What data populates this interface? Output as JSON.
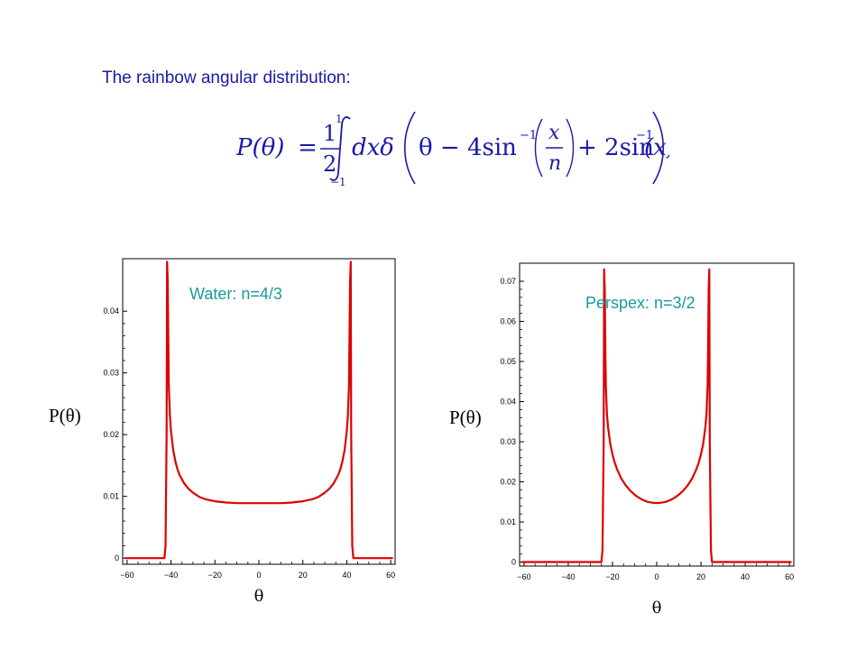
{
  "slide": {
    "title": "The rainbow angular distribution:",
    "accent_color": "#1a1aa6",
    "formula": {
      "lhs": "P(θ)",
      "frac1_num": "1",
      "frac1_den": "2",
      "int_upper": "1",
      "int_lower": "−1",
      "integrand_a": "dxδ",
      "arg_1": "θ − 4sin",
      "inv_1": "−1",
      "frac2_num": "x",
      "frac2_den": "n",
      "arg_2": "+ 2sin",
      "inv_2": "−1",
      "arg_3": "(x)"
    }
  },
  "chart_data": [
    {
      "type": "line",
      "annotation": "Water:  n=4/3",
      "annotation_color": "#1a9a9a",
      "line_color": "#dd0000",
      "ylabel": "P(θ)",
      "xlabel": "θ",
      "xlim": [
        -62,
        62
      ],
      "ylim": [
        -0.001,
        0.0485
      ],
      "xticks": [
        -60,
        -40,
        -20,
        0,
        20,
        40,
        60
      ],
      "xtick_labels": [
        "−60",
        "−40",
        "−20",
        "0",
        "20",
        "40",
        "60"
      ],
      "yticks": [
        0,
        0.01,
        0.02,
        0.03,
        0.04
      ],
      "ytick_labels": [
        "0",
        "0.01",
        "0.02",
        "0.03",
        "0.04"
      ],
      "series": [
        {
          "x": [
            -61,
            -43.0,
            -42.5,
            -42.0,
            -41.8,
            -41.5,
            -41.2,
            -41.0,
            -40.5,
            -40.0,
            -39.0,
            -38.0,
            -37.0,
            -36.0,
            -34.0,
            -32.0,
            -30.0,
            -27.0,
            -24.0,
            -20.0,
            -15.0,
            -10.0,
            -5.0,
            0,
            5.0,
            10.0,
            15.0,
            20.0,
            24.0,
            27.0,
            30.0,
            32.0,
            34.0,
            36.0,
            37.0,
            38.0,
            39.0,
            40.0,
            40.5,
            41.0,
            41.2,
            41.5,
            41.8,
            42.0,
            42.5,
            43.0,
            61
          ],
          "y": [
            0,
            0,
            0.002,
            0.02,
            0.048,
            0.045,
            0.034,
            0.028,
            0.023,
            0.0205,
            0.0175,
            0.0156,
            0.0143,
            0.0134,
            0.0121,
            0.0112,
            0.0106,
            0.0099,
            0.0095,
            0.0092,
            0.009,
            0.0089,
            0.0089,
            0.0089,
            0.0089,
            0.0089,
            0.009,
            0.0092,
            0.0095,
            0.0099,
            0.0106,
            0.0112,
            0.0121,
            0.0134,
            0.0143,
            0.0156,
            0.0175,
            0.0205,
            0.023,
            0.028,
            0.034,
            0.045,
            0.048,
            0.02,
            0.002,
            0,
            0
          ]
        }
      ]
    },
    {
      "type": "line",
      "annotation": "Perspex:  n=3/2",
      "annotation_color": "#1a9a9a",
      "line_color": "#dd0000",
      "ylabel": "P(θ)",
      "xlabel": "θ",
      "xlim": [
        -62,
        62
      ],
      "ylim": [
        -0.001,
        0.0745
      ],
      "xticks": [
        -60,
        -40,
        -20,
        0,
        20,
        40,
        60
      ],
      "xtick_labels": [
        "−60",
        "−40",
        "−20",
        "0",
        "20",
        "40",
        "60"
      ],
      "yticks": [
        0,
        0.01,
        0.02,
        0.03,
        0.04,
        0.05,
        0.06,
        0.07
      ],
      "ytick_labels": [
        "0",
        "0.01",
        "0.02",
        "0.03",
        "0.04",
        "0.05",
        "0.06",
        "0.07"
      ],
      "series": [
        {
          "x": [
            -61,
            -25.0,
            -24.5,
            -24.0,
            -23.8,
            -23.5,
            -23.2,
            -23.0,
            -22.5,
            -22.0,
            -21.0,
            -20.0,
            -19.0,
            -18.0,
            -16.0,
            -14.0,
            -12.0,
            -10.0,
            -8.0,
            -6.0,
            -4.0,
            -2.0,
            0,
            2.0,
            4.0,
            6.0,
            8.0,
            10.0,
            12.0,
            14.0,
            16.0,
            18.0,
            19.0,
            20.0,
            21.0,
            22.0,
            22.5,
            23.0,
            23.2,
            23.5,
            23.8,
            24.0,
            24.5,
            25.0,
            61
          ],
          "y": [
            0,
            0,
            0.003,
            0.03,
            0.073,
            0.068,
            0.052,
            0.044,
            0.037,
            0.0335,
            0.0295,
            0.0268,
            0.0248,
            0.0232,
            0.0208,
            0.0191,
            0.0178,
            0.0168,
            0.016,
            0.0154,
            0.015,
            0.0148,
            0.0147,
            0.0148,
            0.015,
            0.0154,
            0.016,
            0.0168,
            0.0178,
            0.0191,
            0.0208,
            0.0232,
            0.0248,
            0.0268,
            0.0295,
            0.0335,
            0.037,
            0.044,
            0.052,
            0.068,
            0.073,
            0.03,
            0.003,
            0,
            0
          ]
        }
      ]
    }
  ]
}
